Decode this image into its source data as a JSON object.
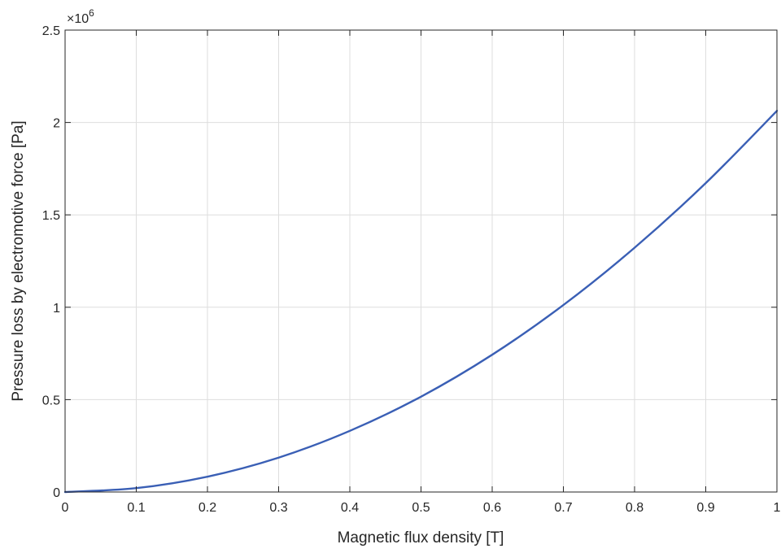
{
  "chart_data": {
    "type": "line",
    "title": "",
    "xlabel": "Magnetic flux density [T]",
    "ylabel": "Pressure loss by electromotive force [Pa]",
    "y_exponent_base": "×10",
    "y_exponent_power": "6",
    "xlim": [
      0,
      1
    ],
    "ylim": [
      0,
      2.5
    ],
    "x_ticks": [
      0,
      0.1,
      0.2,
      0.3,
      0.4,
      0.5,
      0.6,
      0.7,
      0.8,
      0.9,
      1
    ],
    "x_tick_labels": [
      "0",
      "0.1",
      "0.2",
      "0.3",
      "0.4",
      "0.5",
      "0.6",
      "0.7",
      "0.8",
      "0.9",
      "1"
    ],
    "y_ticks": [
      0,
      0.5,
      1,
      1.5,
      2,
      2.5
    ],
    "y_tick_labels": [
      "0",
      "0.5",
      "1",
      "1.5",
      "2",
      "2.5"
    ],
    "grid": true,
    "legend": "none",
    "series": [
      {
        "color": "#3a5fb5",
        "x": [
          0,
          0.1,
          0.2,
          0.3,
          0.4,
          0.5,
          0.6,
          0.7,
          0.8,
          0.9,
          1.0
        ],
        "y": [
          0,
          0.021,
          0.083,
          0.186,
          0.331,
          0.516,
          0.743,
          1.012,
          1.322,
          1.672,
          2.063
        ]
      }
    ]
  }
}
